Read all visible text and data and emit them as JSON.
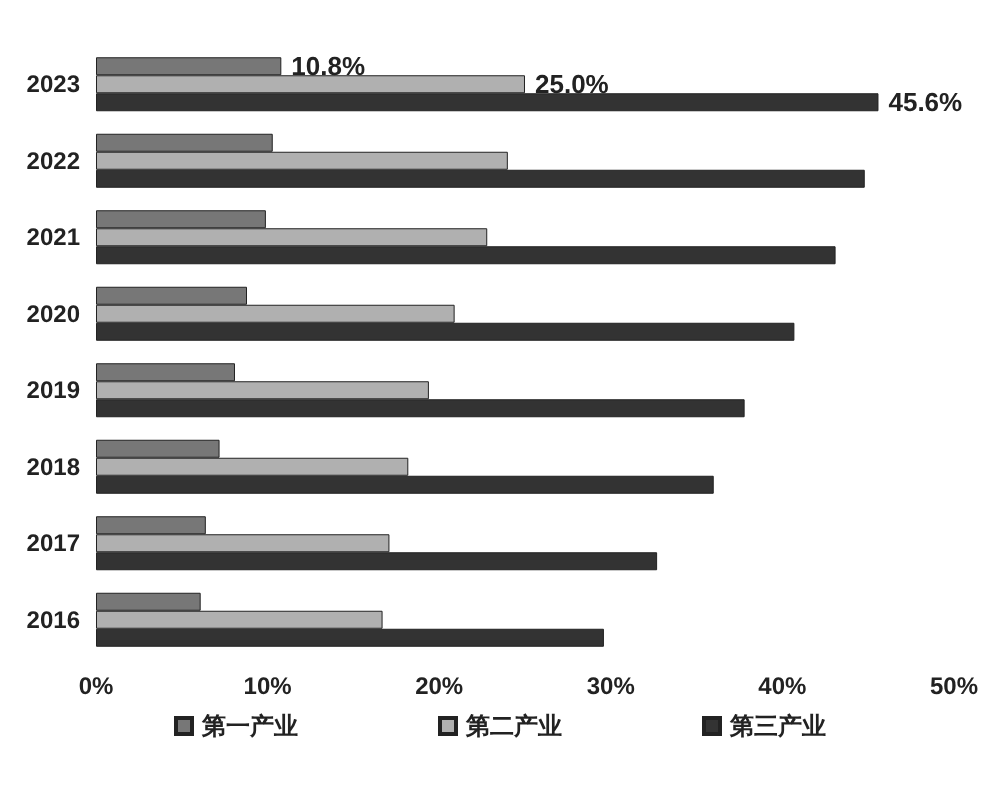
{
  "chart_data": {
    "type": "bar",
    "orientation": "horizontal",
    "categories": [
      "2023",
      "2022",
      "2021",
      "2020",
      "2019",
      "2018",
      "2017",
      "2016"
    ],
    "series": [
      {
        "name": "第一产业",
        "color": "#777777",
        "values": [
          10.8,
          10.3,
          9.9,
          8.8,
          8.1,
          7.2,
          6.4,
          6.1
        ],
        "value_labels": [
          "10.8%",
          null,
          null,
          null,
          null,
          null,
          null,
          null
        ]
      },
      {
        "name": "第二产业",
        "color": "#b0b0b0",
        "values": [
          25.0,
          24.0,
          22.8,
          20.9,
          19.4,
          18.2,
          17.1,
          16.7
        ],
        "value_labels": [
          "25.0%",
          null,
          null,
          null,
          null,
          null,
          null,
          null
        ]
      },
      {
        "name": "第三产业",
        "color": "#333333",
        "values": [
          45.6,
          44.8,
          43.1,
          40.7,
          37.8,
          36.0,
          32.7,
          29.6
        ],
        "value_labels": [
          "45.6%",
          null,
          null,
          null,
          null,
          null,
          null,
          null
        ]
      }
    ],
    "xlim": [
      0,
      50
    ],
    "xticks": [
      {
        "value": 0,
        "label": "0%"
      },
      {
        "value": 10,
        "label": "10%"
      },
      {
        "value": 20,
        "label": "20%"
      },
      {
        "value": 30,
        "label": "30%"
      },
      {
        "value": 40,
        "label": "40%"
      },
      {
        "value": 50,
        "label": "50%"
      }
    ],
    "grid": false,
    "legend": "bottom"
  }
}
